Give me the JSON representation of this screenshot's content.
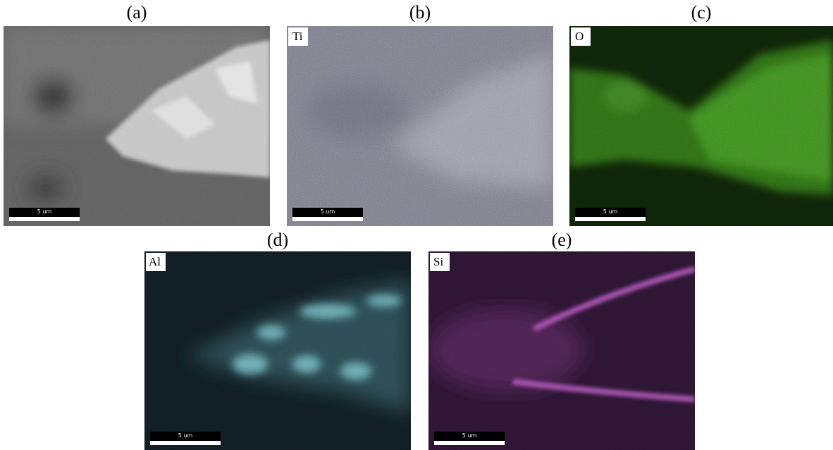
{
  "panels": [
    {
      "label": "(a)",
      "scale_bar": "5 um"
    },
    {
      "label": "(b)",
      "element": "Ti",
      "scale_bar": "5 um"
    },
    {
      "label": "(c)",
      "element": "O",
      "scale_bar": "5 um"
    },
    {
      "label": "(d)",
      "element": "Al",
      "scale_bar": "5 um"
    },
    {
      "label": "(e)",
      "element": "Si",
      "scale_bar": "5 um"
    }
  ]
}
